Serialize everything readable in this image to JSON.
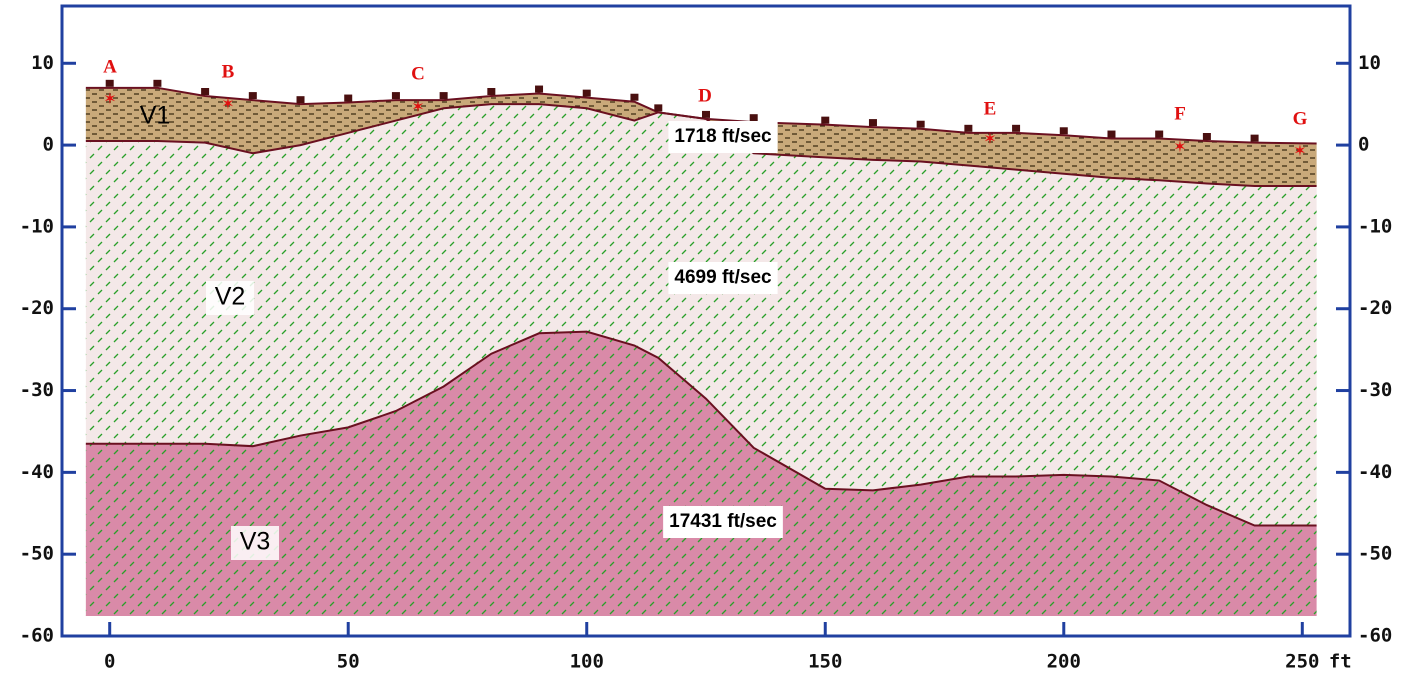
{
  "chart_data": {
    "type": "section",
    "x": [
      -5,
      0,
      10,
      20,
      30,
      40,
      50,
      60,
      70,
      80,
      90,
      100,
      110,
      115,
      125,
      135,
      150,
      160,
      170,
      180,
      190,
      200,
      210,
      220,
      230,
      240,
      253
    ],
    "surface": [
      7,
      7,
      7,
      6,
      5.5,
      5,
      5.2,
      5.5,
      5.5,
      6,
      6.3,
      5.8,
      5.3,
      4,
      3.2,
      2.8,
      2.5,
      2.2,
      2,
      1.5,
      1.5,
      1.2,
      0.8,
      0.8,
      0.5,
      0.3,
      0.2
    ],
    "v1_base": [
      0.5,
      0.5,
      0.5,
      0.3,
      -1,
      0,
      1.5,
      3,
      4.5,
      5,
      5,
      4.5,
      3,
      4,
      3.2,
      -1,
      -1.5,
      -1.8,
      -2,
      -2.5,
      -3,
      -3.5,
      -4,
      -4.3,
      -4.7,
      -5,
      -5
    ],
    "v2_base": [
      -36.5,
      -36.5,
      -36.5,
      -36.5,
      -36.8,
      -35.5,
      -34.5,
      -32.5,
      -29.5,
      -25.5,
      -23,
      -22.8,
      -24.5,
      -26,
      -31,
      -37,
      -42,
      -42.2,
      -41.5,
      -40.5,
      -40.5,
      -40.3,
      -40.5,
      -41,
      -44,
      -46.5,
      -46.5
    ],
    "model_base": -57.5,
    "layers": [
      {
        "label": "V1",
        "velocity": "1718 ft/sec",
        "color": "#c9a97a",
        "pattern_color": "#3a2a10"
      },
      {
        "label": "V2",
        "velocity": "4699 ft/sec",
        "color": "#f4e8e8",
        "pattern_color": "#2aa02a"
      },
      {
        "label": "V3",
        "velocity": "17431 ft/sec",
        "color": "#d98aa8",
        "pattern_color": "#2aa02a"
      }
    ],
    "shots": [
      "A",
      "B",
      "C",
      "D",
      "E",
      "F",
      "G"
    ],
    "x_unit": "ft",
    "xlim": [
      -10,
      260
    ],
    "ylim": [
      -60,
      17
    ],
    "xticks": [
      0,
      50,
      100,
      150,
      200,
      250
    ],
    "yticks": [
      -60,
      -50,
      -40,
      -30,
      -20,
      -10,
      0,
      10
    ]
  }
}
